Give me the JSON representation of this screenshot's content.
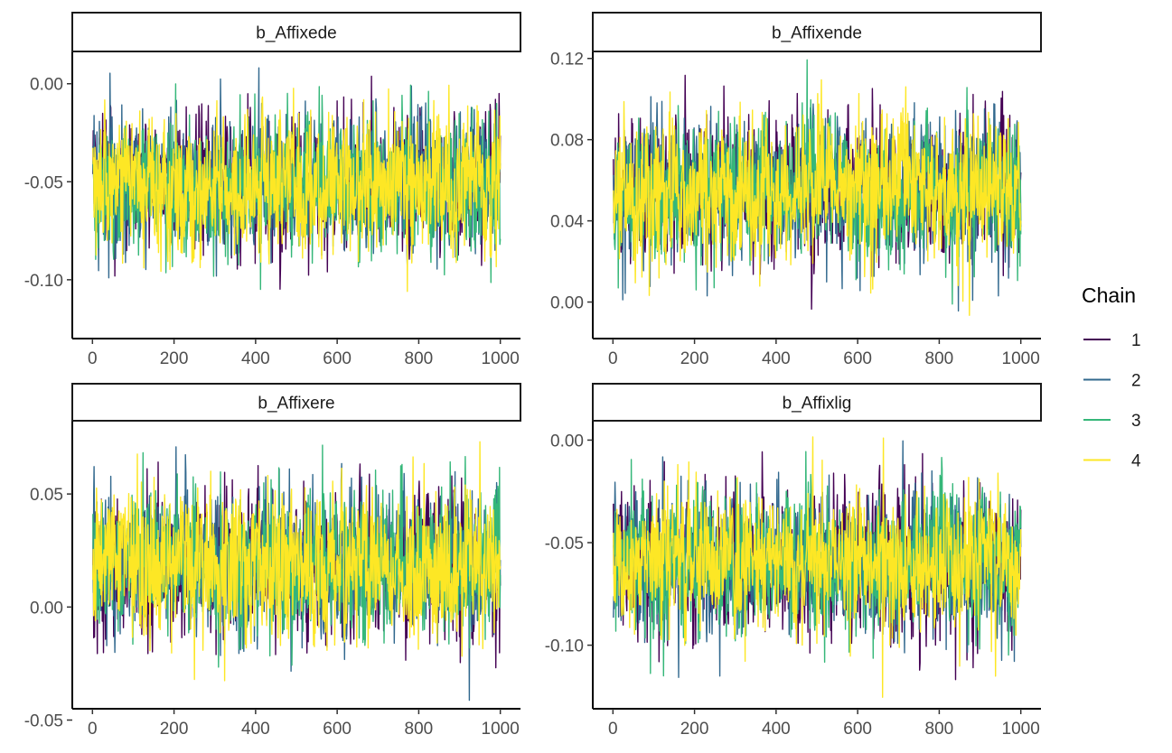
{
  "chart_data": {
    "type": "line",
    "chains": [
      {
        "label": "1",
        "color": "#440154"
      },
      {
        "label": "2",
        "color": "#31688e"
      },
      {
        "label": "3",
        "color": "#35b779"
      },
      {
        "label": "4",
        "color": "#fde725"
      }
    ],
    "legend": {
      "title": "Chain",
      "position": "right"
    },
    "x": {
      "range": [
        1,
        1000
      ],
      "ticks": [
        0,
        200,
        400,
        600,
        800,
        1000
      ]
    },
    "grid": false,
    "panels": [
      {
        "title": "b_Affixede",
        "ylim": [
          -0.13,
          0.016
        ],
        "yticks": [
          "0.00",
          "-0.05",
          "-0.10"
        ],
        "ytick_values": [
          0.0,
          -0.05,
          -0.1
        ],
        "trace_center": -0.052,
        "trace_sd": 0.017
      },
      {
        "title": "b_Affixende",
        "ylim": [
          -0.018,
          0.123
        ],
        "yticks": [
          "0.12",
          "0.08",
          "0.04",
          "0.00"
        ],
        "ytick_values": [
          0.12,
          0.08,
          0.04,
          0.0
        ],
        "trace_center": 0.055,
        "trace_sd": 0.017
      },
      {
        "title": "b_Affixere",
        "ylim": [
          -0.045,
          0.082
        ],
        "yticks": [
          "0.05",
          "0.00",
          "-0.05"
        ],
        "ytick_values": [
          0.05,
          0.0,
          -0.05
        ],
        "trace_center": 0.019,
        "trace_sd": 0.016
      },
      {
        "title": "b_Affixlig",
        "ylim": [
          -0.131,
          0.009
        ],
        "yticks": [
          "0.00",
          "-0.05",
          "-0.10"
        ],
        "ytick_values": [
          0.0,
          -0.05,
          -0.1
        ],
        "trace_center": -0.06,
        "trace_sd": 0.017
      }
    ]
  }
}
